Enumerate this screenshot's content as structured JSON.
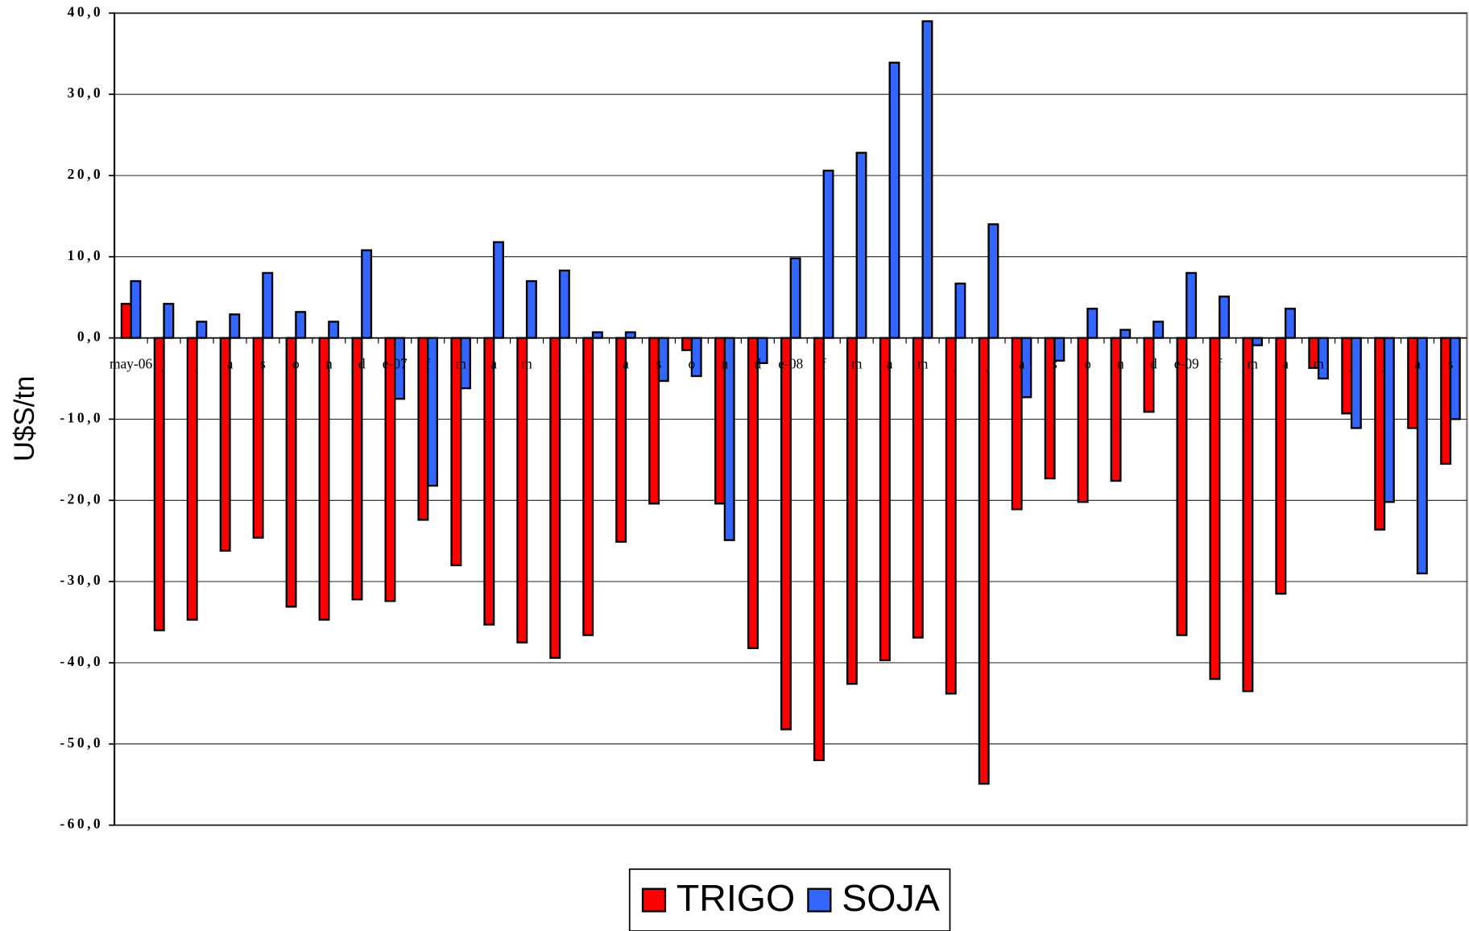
{
  "chart_data": {
    "type": "bar",
    "y_label": "U$S/tn",
    "categories": [
      "may-06",
      "j",
      "j",
      "a",
      "s",
      "o",
      "n",
      "d",
      "e-07",
      "f",
      "m",
      "a",
      "m",
      "j",
      "j",
      "a",
      "s",
      "o",
      "n",
      "d",
      "e-08",
      "f",
      "m",
      "a",
      "m",
      "j",
      "j",
      "a",
      "s",
      "o",
      "n",
      "d",
      "e-09",
      "f",
      "m",
      "a",
      "m",
      "j",
      "j",
      "a",
      "s"
    ],
    "series": [
      {
        "name": "TRIGO",
        "color": "#ff0000",
        "values": [
          4.2,
          -36.0,
          -34.7,
          -26.2,
          -24.6,
          -33.1,
          -34.7,
          -32.2,
          -32.4,
          -22.4,
          -28.0,
          -35.3,
          -37.5,
          -39.4,
          -36.6,
          -25.1,
          -20.4,
          -1.5,
          -20.4,
          -38.2,
          -48.2,
          -52.0,
          -42.6,
          -39.7,
          -36.9,
          -43.8,
          -54.9,
          -21.1,
          -17.3,
          -20.2,
          -17.6,
          -9.1,
          -36.6,
          -42.0,
          -43.5,
          -31.5,
          -3.7,
          -9.3,
          -23.6,
          -11.1,
          -15.5
        ]
      },
      {
        "name": "SOJA",
        "color": "#3366ff",
        "values": [
          7.0,
          4.2,
          2.0,
          2.9,
          8.0,
          3.2,
          2.0,
          10.8,
          -7.5,
          -18.2,
          -6.2,
          11.8,
          7.0,
          8.3,
          0.7,
          0.7,
          -5.3,
          -4.7,
          -24.9,
          -3.1,
          9.8,
          20.6,
          22.8,
          33.9,
          39.0,
          6.7,
          14.0,
          -7.3,
          -2.8,
          3.6,
          1.0,
          2.0,
          8.0,
          5.1,
          -0.9,
          3.6,
          -5.0,
          -11.1,
          -20.2,
          -29.0,
          -10.0
        ]
      }
    ],
    "ylim": [
      -60,
      40
    ],
    "yticks": [
      {
        "value": -60,
        "label": "-60,0"
      },
      {
        "value": -50,
        "label": "-50,0"
      },
      {
        "value": -40,
        "label": "-40,0"
      },
      {
        "value": -30,
        "label": "-30,0"
      },
      {
        "value": -20,
        "label": "-20,0"
      },
      {
        "value": -10,
        "label": "-10,0"
      },
      {
        "value": 0,
        "label": "0,0"
      },
      {
        "value": 10,
        "label": "10,0"
      },
      {
        "value": 20,
        "label": "20,0"
      },
      {
        "value": 30,
        "label": "30,0"
      },
      {
        "value": 40,
        "label": "40,0"
      }
    ],
    "grid": true,
    "legend": "bottom"
  }
}
